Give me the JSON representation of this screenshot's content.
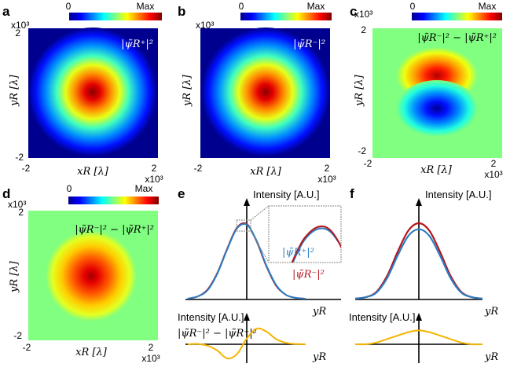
{
  "figure": {
    "panels": [
      {
        "label": "a",
        "colorbar_min": "0",
        "colorbar_max": "Max",
        "exponent": "x10³",
        "equation": "|ψ̃R⁺|²",
        "xlabel": "xR [λ]",
        "ylabel": "yR [λ]",
        "x_tick_min": "-2",
        "x_tick_max": "2",
        "y_tick_min": "-2",
        "y_tick_max": "2",
        "x_exponent": "x10³"
      },
      {
        "label": "b",
        "colorbar_min": "0",
        "colorbar_max": "Max",
        "exponent": "x10³",
        "equation": "|ψ̃R⁻|²",
        "xlabel": "xR [λ]",
        "ylabel": "yR [λ]",
        "x_tick_min": "-2",
        "x_tick_max": "2",
        "y_tick_min": "-2",
        "y_tick_max": "2",
        "x_exponent": "x10³"
      },
      {
        "label": "c",
        "colorbar_min": "0",
        "colorbar_max": "Max",
        "exponent": "x10³",
        "equation": "|ψ̃R⁻|² − |ψ̃R⁺|²",
        "xlabel": "xR [λ]",
        "ylabel": "yR [λ]",
        "x_tick_min": "-2",
        "x_tick_max": "2",
        "y_tick_min": "-2",
        "y_tick_max": "2",
        "x_exponent": "x10³"
      },
      {
        "label": "d",
        "colorbar_min": "0",
        "colorbar_max": "Max",
        "exponent": "x10³",
        "equation": "|ψ̃R⁻|² − |ψ̃R⁺|²",
        "xlabel": "xR [λ]",
        "ylabel": "yR [λ]",
        "x_tick_min": "-2",
        "x_tick_max": "2",
        "y_tick_min": "-2",
        "y_tick_max": "2",
        "x_exponent": "x10³"
      },
      {
        "label": "e",
        "ylabel_top": "Intensity [A.U.]",
        "xlabel_top": "yR",
        "legend_blue": "|ψ̃R⁺|²",
        "legend_red": "|ψ̃R⁻|²",
        "ylabel_bottom": "Intensity [A.U.]",
        "xlabel_bottom": "yR",
        "bottom_equation": "|ψ̃R⁻|² − |ψ̃R⁺|²"
      },
      {
        "label": "f",
        "ylabel_top": "Intensity [A.U.]",
        "xlabel_top": "yR",
        "ylabel_bottom": "Intensity [A.U.]",
        "xlabel_bottom": "yR"
      }
    ],
    "colors": {
      "red": "#b5141c",
      "blue": "#2a7fc3",
      "yellow": "#f5b400",
      "green_bg": "#80ff80",
      "navy_bg": "#00008f"
    }
  },
  "chart_data": [
    {
      "type": "heatmap",
      "panel": "a",
      "title": "|ψ̃R⁺|²",
      "x_range_e3": [
        -2,
        2
      ],
      "y_range_e3": [
        -2,
        2
      ],
      "colormap": "jet",
      "colorbar": [
        "0",
        "Max"
      ],
      "center": [
        0,
        0
      ],
      "waist_e3": 0.5
    },
    {
      "type": "heatmap",
      "panel": "b",
      "title": "|ψ̃R⁻|²",
      "x_range_e3": [
        -2,
        2
      ],
      "y_range_e3": [
        -2,
        2
      ],
      "colormap": "jet",
      "colorbar": [
        "0",
        "Max"
      ],
      "center": [
        0,
        0
      ],
      "waist_e3": 0.5
    },
    {
      "type": "heatmap",
      "panel": "c",
      "title": "|ψ̃R⁻|² − |ψ̃R⁺|²",
      "x_range_e3": [
        -2,
        2
      ],
      "y_range_e3": [
        -2,
        2
      ],
      "colormap": "jet",
      "colorbar": [
        "0",
        "Max"
      ],
      "pattern": "dipole (positive upper lobe, negative lower lobe)"
    },
    {
      "type": "heatmap",
      "panel": "d",
      "title": "|ψ̃R⁻|² − |ψ̃R⁺|²",
      "x_range_e3": [
        -2,
        2
      ],
      "y_range_e3": [
        -2,
        2
      ],
      "colormap": "jet",
      "colorbar": [
        "0",
        "Max"
      ],
      "center": [
        0,
        0
      ],
      "waist_e3": 0.7
    },
    {
      "type": "line",
      "panel": "e",
      "x": [
        -3,
        -2.5,
        -2,
        -1.5,
        -1,
        -0.5,
        0,
        0.5,
        1,
        1.5,
        2,
        2.5,
        3
      ],
      "series": [
        {
          "name": "|ψ̃R⁻|²",
          "color": "red",
          "values": [
            0.0,
            0.03,
            0.12,
            0.34,
            0.66,
            0.94,
            0.99,
            0.76,
            0.43,
            0.17,
            0.05,
            0.01,
            0.0
          ]
        },
        {
          "name": "|ψ̃R⁺|²",
          "color": "blue",
          "values": [
            0.0,
            0.03,
            0.11,
            0.33,
            0.65,
            0.93,
            0.98,
            0.77,
            0.44,
            0.18,
            0.05,
            0.01,
            0.0
          ]
        },
        {
          "name": "|ψ̃R⁻|² − |ψ̃R⁺|²",
          "color": "yellow",
          "values": [
            0.0,
            0.01,
            -0.05,
            -0.22,
            -0.5,
            -0.35,
            0.2,
            0.55,
            0.45,
            0.18,
            0.05,
            0.01,
            0.0
          ]
        }
      ]
    },
    {
      "type": "line",
      "panel": "f",
      "x": [
        -3,
        -2.5,
        -2,
        -1.5,
        -1,
        -0.5,
        0,
        0.5,
        1,
        1.5,
        2,
        2.5,
        3
      ],
      "series": [
        {
          "name": "|ψ̃R⁻|²",
          "color": "red",
          "values": [
            0.0,
            0.02,
            0.09,
            0.3,
            0.62,
            0.9,
            1.0,
            0.9,
            0.62,
            0.3,
            0.09,
            0.02,
            0.0
          ]
        },
        {
          "name": "|ψ̃R⁺|²",
          "color": "blue",
          "values": [
            0.0,
            0.02,
            0.08,
            0.27,
            0.57,
            0.83,
            0.92,
            0.83,
            0.57,
            0.27,
            0.08,
            0.02,
            0.0
          ]
        },
        {
          "name": "|ψ̃R⁻|² − |ψ̃R⁺|²",
          "color": "yellow",
          "values": [
            0.0,
            0.0,
            0.01,
            0.03,
            0.05,
            0.07,
            0.08,
            0.07,
            0.05,
            0.03,
            0.01,
            0.0,
            0.0
          ]
        }
      ]
    }
  ]
}
